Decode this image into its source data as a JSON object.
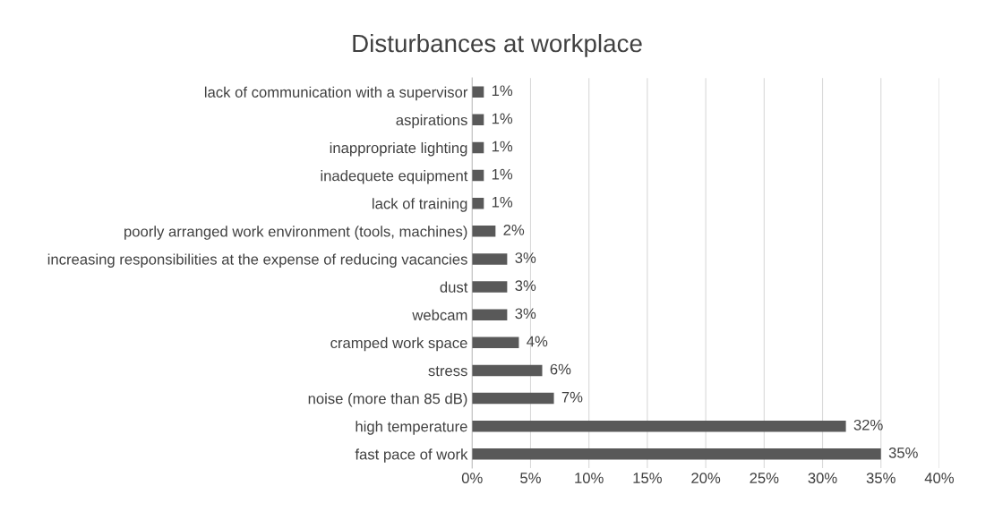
{
  "chart_data": {
    "type": "bar",
    "orientation": "horizontal",
    "title": "Disturbances at workplace",
    "categories": [
      "lack of communication with a supervisor",
      "aspirations",
      "inappropriate lighting",
      "inadequete equipment",
      "lack of training",
      "poorly arranged work environment (tools, machines)",
      "increasing responsibilities at the expense of reducing vacancies",
      "dust",
      "webcam",
      "cramped work space",
      "stress",
      "noise (more than 85 dB)",
      "high temperature",
      "fast pace of work"
    ],
    "values": [
      1,
      1,
      1,
      1,
      1,
      2,
      3,
      3,
      3,
      4,
      6,
      7,
      32,
      35
    ],
    "value_labels": [
      "1%",
      "1%",
      "1%",
      "1%",
      "1%",
      "2%",
      "3%",
      "3%",
      "3%",
      "4%",
      "6%",
      "7%",
      "32%",
      "35%"
    ],
    "color": "#595959",
    "xlim": [
      0,
      40
    ],
    "xticks": [
      {
        "value": 0,
        "label": "0%"
      },
      {
        "value": 5,
        "label": "5%"
      },
      {
        "value": 10,
        "label": "10%"
      },
      {
        "value": 15,
        "label": "15%"
      },
      {
        "value": 20,
        "label": "20%"
      },
      {
        "value": 25,
        "label": "25%"
      },
      {
        "value": 30,
        "label": "30%"
      },
      {
        "value": 35,
        "label": "35%"
      },
      {
        "value": 40,
        "label": "40%"
      }
    ],
    "grid": "x",
    "legend": false
  }
}
